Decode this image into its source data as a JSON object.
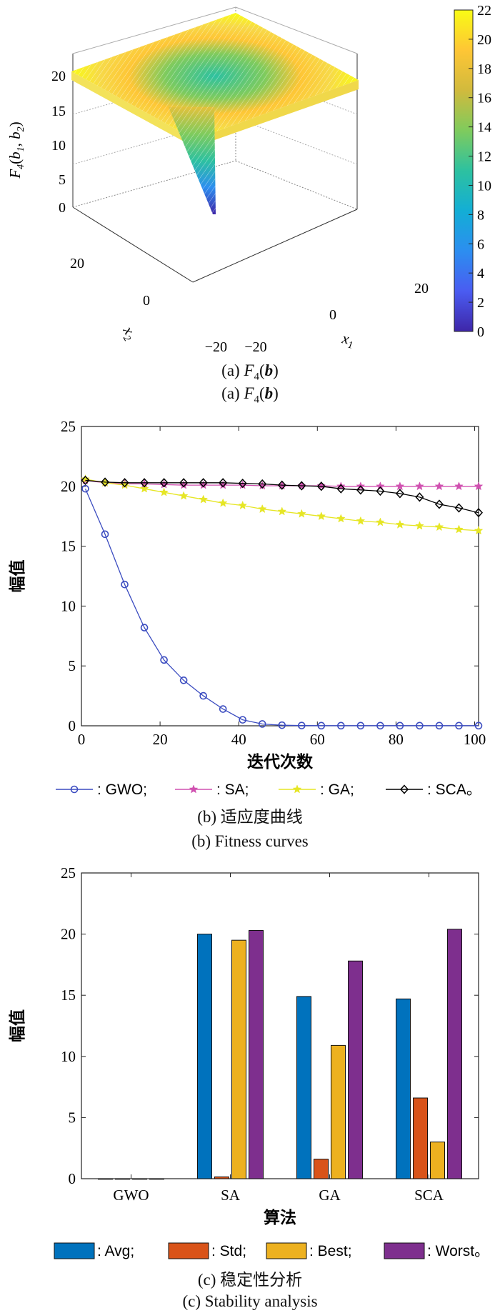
{
  "figure": {
    "panel_a": {
      "caption_line1": {
        "prefix": "(a) ",
        "func": "F",
        "sub": "4",
        "arg": "b"
      },
      "caption_line2": {
        "prefix": "(a) ",
        "func": "F",
        "sub": "4",
        "arg": "b"
      }
    },
    "panel_b": {
      "caption_cn": "(b) 适应度曲线",
      "caption_en": "(b) Fitness curves"
    },
    "panel_c": {
      "caption_cn": "(c) 稳定性分析",
      "caption_en": "(c) Stability analysis"
    }
  },
  "chart_data": [
    {
      "type": "surface",
      "zlabel": "F4(b1, b2)",
      "xlabel": "x1",
      "ylabel": "x2",
      "x_ticks": [
        "−20",
        "0",
        "20"
      ],
      "y_ticks": [
        "−20",
        "0",
        "20"
      ],
      "z_ticks": [
        "0",
        "5",
        "10",
        "15",
        "20"
      ],
      "zlim": [
        0,
        22
      ],
      "colorbar_ticks": [
        "0",
        "2",
        "4",
        "6",
        "8",
        "10",
        "12",
        "14",
        "16",
        "18",
        "20",
        "22"
      ],
      "colormap": [
        "#3e26a8",
        "#4a5cf1",
        "#2c8ef0",
        "#13aed5",
        "#2dc1a0",
        "#7fcb5d",
        "#d1ba3d",
        "#fec635",
        "#f9fb15"
      ]
    },
    {
      "type": "line",
      "xlabel": "迭代次数",
      "ylabel": "幅值",
      "xlim": [
        0,
        101
      ],
      "ylim": [
        0,
        25
      ],
      "x_ticks": [
        0,
        20,
        40,
        60,
        80,
        100
      ],
      "y_ticks": [
        0,
        5,
        10,
        15,
        20,
        25
      ],
      "legend_position": "bottom",
      "series": [
        {
          "name": ": GWO;",
          "color": "#3b4cc0",
          "marker": "circle",
          "x": [
            1,
            6,
            11,
            16,
            21,
            26,
            31,
            36,
            41,
            46,
            51,
            56,
            61,
            66,
            71,
            76,
            81,
            86,
            91,
            96,
            101
          ],
          "y": [
            19.8,
            16.0,
            11.8,
            8.2,
            5.5,
            3.8,
            2.5,
            1.4,
            0.5,
            0.15,
            0.05,
            0.02,
            0.01,
            0.01,
            0.01,
            0.01,
            0.01,
            0.01,
            0.01,
            0.01,
            0.01
          ]
        },
        {
          "name": ": SA;",
          "color": "#d050b0",
          "marker": "star",
          "x": [
            1,
            6,
            11,
            16,
            21,
            26,
            31,
            36,
            41,
            46,
            51,
            56,
            61,
            66,
            71,
            76,
            81,
            86,
            91,
            96,
            101
          ],
          "y": [
            20.5,
            20.3,
            20.2,
            20.2,
            20.15,
            20.1,
            20.1,
            20.1,
            20.1,
            20.05,
            20.05,
            20.05,
            20.05,
            20.0,
            20.0,
            20.0,
            20.0,
            20.0,
            20.0,
            20.0,
            20.0
          ]
        },
        {
          "name": ": GA;",
          "color": "#e6e625",
          "marker": "star",
          "x": [
            1,
            6,
            11,
            16,
            21,
            26,
            31,
            36,
            41,
            46,
            51,
            56,
            61,
            66,
            71,
            76,
            81,
            86,
            91,
            96,
            101
          ],
          "y": [
            20.6,
            20.3,
            20.1,
            19.8,
            19.5,
            19.2,
            18.9,
            18.6,
            18.4,
            18.1,
            17.9,
            17.7,
            17.5,
            17.3,
            17.1,
            17.0,
            16.8,
            16.7,
            16.6,
            16.4,
            16.3
          ]
        },
        {
          "name": ": SCA。",
          "color": "#000000",
          "marker": "diamond",
          "x": [
            1,
            6,
            11,
            16,
            21,
            26,
            31,
            36,
            41,
            46,
            51,
            56,
            61,
            66,
            71,
            76,
            81,
            86,
            91,
            96,
            101
          ],
          "y": [
            20.5,
            20.35,
            20.3,
            20.3,
            20.3,
            20.3,
            20.3,
            20.3,
            20.25,
            20.2,
            20.1,
            20.05,
            20.0,
            19.8,
            19.7,
            19.6,
            19.4,
            19.1,
            18.5,
            18.2,
            17.8
          ]
        }
      ]
    },
    {
      "type": "bar",
      "xlabel": "算法",
      "ylabel": "幅值",
      "ylim": [
        0,
        25
      ],
      "y_ticks": [
        0,
        5,
        10,
        15,
        20,
        25
      ],
      "categories": [
        "GWO",
        "SA",
        "GA",
        "SCA"
      ],
      "legend_position": "bottom",
      "series": [
        {
          "name": ": Avg;",
          "color": "#0072bd",
          "values": [
            0.0,
            20.0,
            14.9,
            14.7
          ]
        },
        {
          "name": ": Std;",
          "color": "#d95319",
          "values": [
            0.0,
            0.15,
            1.6,
            6.6
          ]
        },
        {
          "name": ": Best;",
          "color": "#edb120",
          "values": [
            0.0,
            19.5,
            10.9,
            3.0
          ]
        },
        {
          "name": ": Worst。",
          "color": "#7e2f8e",
          "values": [
            0.0,
            20.3,
            17.8,
            20.4
          ]
        }
      ]
    }
  ]
}
